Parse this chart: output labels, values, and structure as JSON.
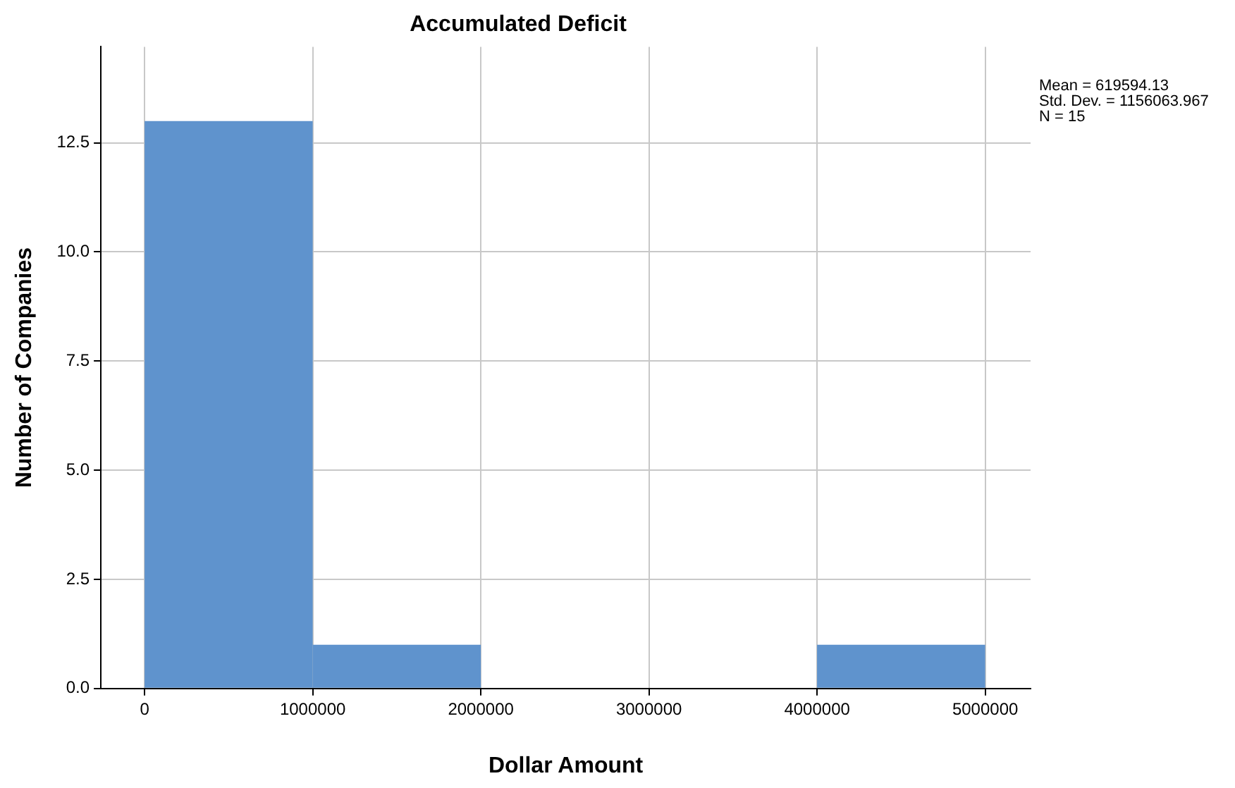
{
  "chart_data": {
    "type": "histogram",
    "title": "Accumulated Deficit",
    "xlabel": "Dollar Amount",
    "ylabel": "Number of Companies",
    "bins": [
      0,
      1000000,
      2000000,
      3000000,
      4000000,
      5000000
    ],
    "values": [
      13,
      1,
      0,
      0,
      1
    ],
    "color": "#5f93cd",
    "xlim": [
      -260000,
      5270000
    ],
    "xticks": [
      0,
      1000000,
      2000000,
      3000000,
      4000000,
      5000000
    ],
    "ylim": [
      0,
      14.7
    ],
    "yticks": [
      {
        "value": 0,
        "label": "0.0"
      },
      {
        "value": 2.5,
        "label": "2.5"
      },
      {
        "value": 5,
        "label": "5.0"
      },
      {
        "value": 7.5,
        "label": "7.5"
      },
      {
        "value": 10,
        "label": "10.0"
      },
      {
        "value": 12.5,
        "label": "12.5"
      }
    ],
    "grid": true,
    "legend": false,
    "annotations": [
      "Mean = 619594.13",
      "Std. Dev. = 1156063.967",
      "N = 15"
    ]
  }
}
